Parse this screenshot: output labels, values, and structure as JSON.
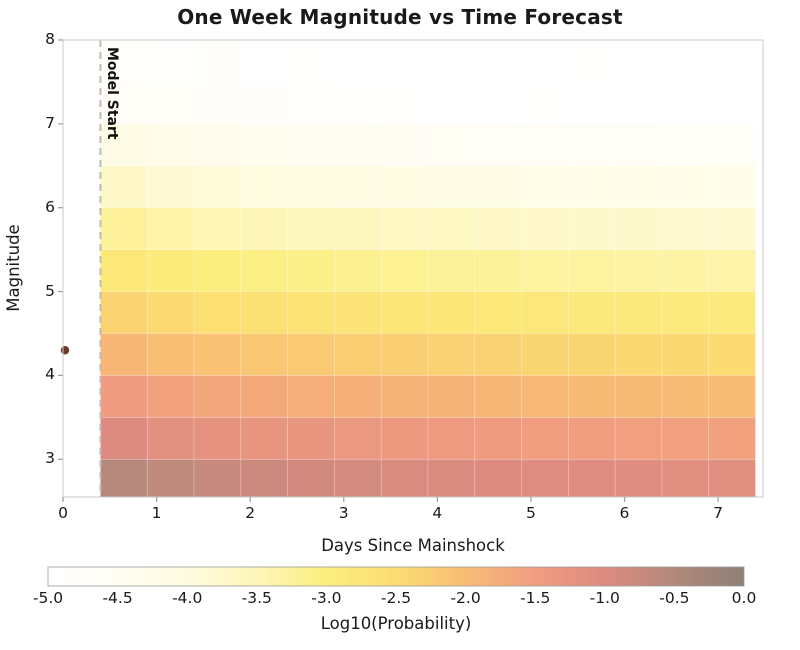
{
  "chart_data": {
    "type": "heatmap",
    "title": "One Week Magnitude vs Time Forecast",
    "xlabel": "Days Since Mainshock",
    "ylabel": "Magnitude",
    "x_ticks": [
      0,
      1,
      2,
      3,
      4,
      5,
      6,
      7
    ],
    "y_ticks": [
      3,
      4,
      5,
      6,
      7,
      8
    ],
    "xlim": [
      0,
      7.48
    ],
    "ylim": [
      2.55,
      8.0
    ],
    "grid": {
      "day_start": 0.4,
      "day_bin_width": 0.5,
      "n_day_bins": 14,
      "mag_bin_width": 0.5,
      "rows": [
        {
          "mag_lo": 2.5,
          "log10_prob": [
            -0.55,
            -0.66,
            -0.76,
            -0.8,
            -0.87,
            -0.89,
            -0.95,
            -0.96,
            -1.01,
            -1.02,
            -1.06,
            -1.06,
            -1.1,
            -1.1
          ]
        },
        {
          "mag_lo": 3.0,
          "log10_prob": [
            -1.0,
            -1.13,
            -1.19,
            -1.27,
            -1.3,
            -1.36,
            -1.38,
            -1.43,
            -1.44,
            -1.49,
            -1.49,
            -1.53,
            -1.53,
            -1.57
          ]
        },
        {
          "mag_lo": 3.5,
          "log10_prob": [
            -1.45,
            -1.56,
            -1.66,
            -1.7,
            -1.77,
            -1.79,
            -1.85,
            -1.86,
            -1.91,
            -1.92,
            -1.96,
            -1.96,
            -2.0,
            -2.0
          ]
        },
        {
          "mag_lo": 4.0,
          "log10_prob": [
            -1.9,
            -2.03,
            -2.09,
            -2.17,
            -2.2,
            -2.26,
            -2.28,
            -2.33,
            -2.34,
            -2.39,
            -2.39,
            -2.43,
            -2.43,
            -2.47
          ]
        },
        {
          "mag_lo": 4.5,
          "log10_prob": [
            -2.35,
            -2.46,
            -2.56,
            -2.6,
            -2.67,
            -2.69,
            -2.75,
            -2.76,
            -2.81,
            -2.82,
            -2.86,
            -2.86,
            -2.9,
            -2.9
          ]
        },
        {
          "mag_lo": 5.0,
          "log10_prob": [
            -2.8,
            -2.93,
            -2.99,
            -3.07,
            -3.1,
            -3.16,
            -3.18,
            -3.23,
            -3.24,
            -3.29,
            -3.29,
            -3.33,
            -3.33,
            -3.37
          ]
        },
        {
          "mag_lo": 5.5,
          "log10_prob": [
            -3.25,
            -3.36,
            -3.46,
            -3.5,
            -3.57,
            -3.59,
            -3.65,
            -3.66,
            -3.71,
            -3.72,
            -3.76,
            -3.76,
            -3.8,
            -3.8
          ]
        },
        {
          "mag_lo": 6.0,
          "log10_prob": [
            -3.7,
            -3.83,
            -3.89,
            -3.97,
            -4.0,
            -4.06,
            -4.08,
            -4.13,
            -4.14,
            -4.19,
            -4.19,
            -4.23,
            -4.23,
            -4.27
          ]
        },
        {
          "mag_lo": 6.5,
          "log10_prob": [
            -4.15,
            -4.26,
            -4.36,
            -4.4,
            -4.47,
            -4.49,
            -4.55,
            -4.56,
            -4.61,
            -4.62,
            -4.66,
            -4.66,
            -4.7,
            -4.7
          ]
        },
        {
          "mag_lo": 7.0,
          "log10_prob": [
            -4.6,
            -4.73,
            -4.79,
            -4.87,
            -4.9,
            -4.96,
            -4.98,
            -5.0,
            -5.0,
            -4.92,
            -5.0,
            -5.0,
            -5.0,
            -5.0
          ]
        },
        {
          "mag_lo": 7.5,
          "log10_prob": [
            -4.9,
            -4.97,
            -4.85,
            -5.0,
            -4.95,
            -5.0,
            -5.0,
            -5.0,
            -5.0,
            -5.0,
            -4.97,
            -5.0,
            -5.0,
            -5.0
          ]
        }
      ]
    },
    "annotations": {
      "model_start": {
        "text": "Model Start",
        "day": 0.4
      },
      "mainshock": {
        "day": 0.0,
        "magnitude": 4.3,
        "color": "#6a3b2c"
      }
    },
    "colorbar": {
      "label": "Log10(Probability)",
      "ticks": [
        "-5.0",
        "-4.5",
        "-4.0",
        "-3.5",
        "-3.0",
        "-2.5",
        "-2.0",
        "-1.5",
        "-1.0",
        "-0.5",
        "0.0"
      ],
      "vmin": -5.0,
      "vmax": 0.0,
      "colormap_stops": [
        [
          -5.0,
          "#ffffff"
        ],
        [
          -4.5,
          "#fffdf2"
        ],
        [
          -4.0,
          "#fffbe0"
        ],
        [
          -3.5,
          "#fdf6b8"
        ],
        [
          -3.0,
          "#fcee7e"
        ],
        [
          -2.5,
          "#fbdd72"
        ],
        [
          -2.0,
          "#f8bc74"
        ],
        [
          -1.5,
          "#f19d80"
        ],
        [
          -1.0,
          "#dd8b80"
        ],
        [
          -0.5,
          "#b2897b"
        ],
        [
          0.0,
          "#8e8177"
        ]
      ]
    },
    "style": {
      "dashed_line_color": "#bcbcbc",
      "axis_color": "#c9c9c9",
      "tick_mark_color": "#9e9e9e"
    }
  }
}
